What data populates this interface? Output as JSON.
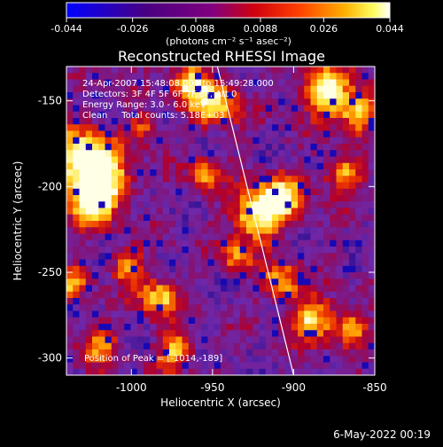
{
  "chart_data": {
    "type": "heatmap",
    "title": "Reconstructed RHESSI Image",
    "xlabel": "Heliocentric X (arcsec)",
    "ylabel": "Heliocentric Y (arcsec)",
    "xlim": [
      -1040,
      -850
    ],
    "ylim": [
      -310,
      -130
    ],
    "x_ticks": [
      "-1000",
      "-950",
      "-900",
      "-850"
    ],
    "x_tick_values": [
      -1000,
      -950,
      -900,
      -850
    ],
    "y_ticks": [
      "-150",
      "-200",
      "-250",
      "-300"
    ],
    "y_tick_values": [
      -150,
      -200,
      -250,
      -300
    ],
    "colorbar": {
      "min": -0.044,
      "max": 0.044,
      "tick_labels": [
        "-0.044",
        "-0.026",
        "-0.0088",
        "0.0088",
        "0.026",
        "0.044"
      ],
      "tick_values": [
        -0.044,
        -0.026,
        -0.0088,
        0.0088,
        0.026,
        0.044
      ],
      "units": "(photons cm⁻² s⁻¹ asec⁻²)",
      "colormap": [
        "#0000ff",
        "#4b0082",
        "#800080",
        "#ff0000",
        "#ff8c00",
        "#ffff00",
        "#ffffff"
      ]
    },
    "annotations": [
      "24-Apr-2007 15:48:08.000 to 15:49:28.000",
      "Detectors: 3F 4F 5F 6F 7F 8F, Att 0",
      "Energy Range: 3.0 - 6.0 keV",
      "Clean     Total counts: 5.18E+03"
    ],
    "peak_label": "Position of Peak = [-1014,-189]",
    "limb_line": [
      [
        -947,
        -130
      ],
      [
        -900,
        -310
      ]
    ],
    "grid": false
  },
  "footer": {
    "date": "6-May-2022 00:19"
  },
  "colors": {
    "background": "#000000",
    "text": "#ffffff"
  }
}
